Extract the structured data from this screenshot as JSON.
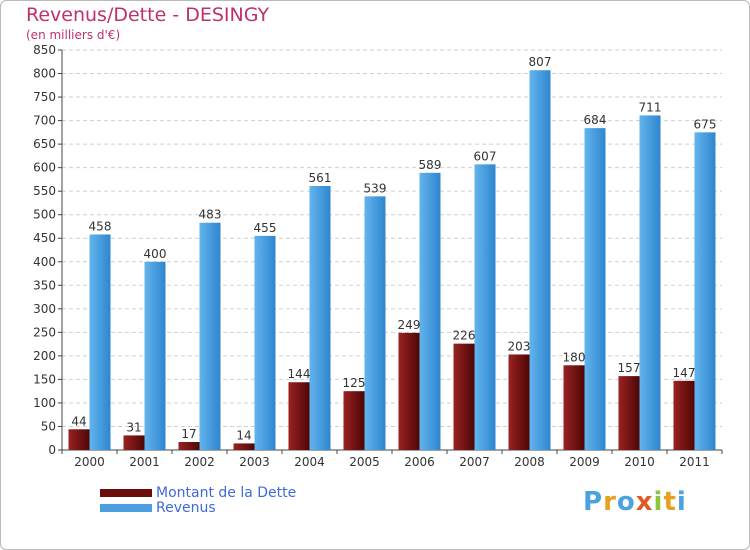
{
  "title": "Revenus/Dette - DESINGY",
  "subtitle": "(en milliers d'€)",
  "colors": {
    "dette": "#7a1414",
    "revenus": "#4a9fe0",
    "title": "#c0306c",
    "legend_text": "#3e6ad8"
  },
  "logo": {
    "text": "Proxiti",
    "letters": [
      {
        "char": "P",
        "color": "#4aa3df"
      },
      {
        "char": "r",
        "color": "#e8a020"
      },
      {
        "char": "o",
        "color": "#4aa3df"
      },
      {
        "char": "x",
        "color": "#e05a28"
      },
      {
        "char": "i",
        "color": "#8cc63f"
      },
      {
        "char": "t",
        "color": "#e8a020"
      },
      {
        "char": "i",
        "color": "#4aa3df"
      }
    ]
  },
  "chart_data": {
    "type": "bar",
    "title": "Revenus/Dette - DESINGY",
    "subtitle": "(en milliers d'€)",
    "categories": [
      "2000",
      "2001",
      "2002",
      "2003",
      "2004",
      "2005",
      "2006",
      "2007",
      "2008",
      "2009",
      "2010",
      "2011"
    ],
    "series": [
      {
        "name": "Montant de la Dette",
        "values": [
          44,
          31,
          17,
          14,
          144,
          125,
          249,
          226,
          203,
          180,
          157,
          147
        ]
      },
      {
        "name": "Revenus",
        "values": [
          458,
          400,
          483,
          455,
          561,
          539,
          589,
          607,
          807,
          684,
          711,
          675
        ]
      }
    ],
    "ylim": [
      0,
      850
    ],
    "yticks": [
      0,
      50,
      100,
      150,
      200,
      250,
      300,
      350,
      400,
      450,
      500,
      550,
      600,
      650,
      700,
      750,
      800,
      850
    ],
    "grid": "horizontal",
    "legend_position": "bottom-left"
  }
}
